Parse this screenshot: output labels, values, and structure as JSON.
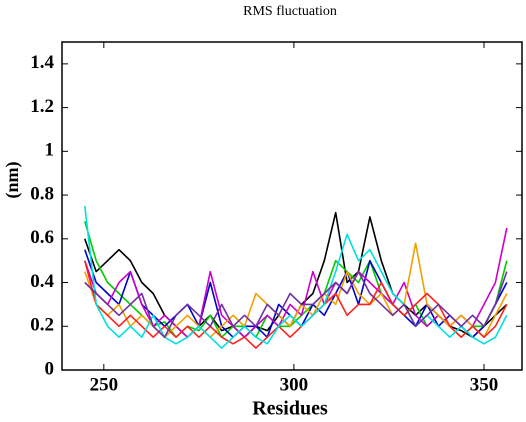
{
  "chart_data": {
    "type": "line",
    "title": "RMS fluctuation",
    "x_label": "Residues",
    "y_label": "(nm)",
    "x": [
      245,
      248,
      251,
      254,
      257,
      260,
      263,
      266,
      269,
      272,
      275,
      278,
      281,
      284,
      287,
      290,
      293,
      296,
      299,
      302,
      305,
      308,
      311,
      314,
      317,
      320,
      323,
      326,
      329,
      332,
      335,
      338,
      341,
      344,
      347,
      350,
      353,
      356
    ],
    "series": [
      {
        "color": "#000000",
        "values": [
          0.6,
          0.45,
          0.5,
          0.55,
          0.5,
          0.4,
          0.35,
          0.25,
          0.2,
          0.15,
          0.2,
          0.25,
          0.18,
          0.2,
          0.15,
          0.2,
          0.18,
          0.25,
          0.2,
          0.3,
          0.35,
          0.5,
          0.72,
          0.4,
          0.45,
          0.7,
          0.5,
          0.35,
          0.3,
          0.25,
          0.3,
          0.25,
          0.2,
          0.18,
          0.15,
          0.2,
          0.25,
          0.3
        ]
      },
      {
        "color": "#00cc00",
        "values": [
          0.68,
          0.5,
          0.4,
          0.35,
          0.3,
          0.25,
          0.2,
          0.22,
          0.15,
          0.2,
          0.18,
          0.25,
          0.15,
          0.2,
          0.2,
          0.15,
          0.25,
          0.2,
          0.2,
          0.25,
          0.3,
          0.35,
          0.5,
          0.45,
          0.4,
          0.5,
          0.35,
          0.3,
          0.25,
          0.3,
          0.2,
          0.25,
          0.2,
          0.15,
          0.2,
          0.2,
          0.3,
          0.5
        ]
      },
      {
        "color": "#0000cc",
        "values": [
          0.55,
          0.4,
          0.35,
          0.3,
          0.45,
          0.3,
          0.25,
          0.2,
          0.25,
          0.3,
          0.2,
          0.4,
          0.2,
          0.15,
          0.2,
          0.2,
          0.15,
          0.3,
          0.25,
          0.2,
          0.3,
          0.25,
          0.35,
          0.45,
          0.3,
          0.5,
          0.4,
          0.3,
          0.25,
          0.2,
          0.3,
          0.2,
          0.25,
          0.2,
          0.15,
          0.2,
          0.3,
          0.4
        ]
      },
      {
        "color": "#cc00cc",
        "values": [
          0.5,
          0.35,
          0.3,
          0.4,
          0.45,
          0.3,
          0.2,
          0.25,
          0.2,
          0.15,
          0.2,
          0.45,
          0.25,
          0.2,
          0.15,
          0.2,
          0.25,
          0.2,
          0.3,
          0.25,
          0.45,
          0.3,
          0.4,
          0.35,
          0.45,
          0.4,
          0.35,
          0.3,
          0.4,
          0.25,
          0.2,
          0.25,
          0.2,
          0.25,
          0.2,
          0.3,
          0.4,
          0.65
        ]
      },
      {
        "color": "#f0a000",
        "values": [
          0.45,
          0.3,
          0.25,
          0.3,
          0.2,
          0.25,
          0.2,
          0.15,
          0.2,
          0.25,
          0.2,
          0.15,
          0.2,
          0.25,
          0.2,
          0.35,
          0.3,
          0.25,
          0.2,
          0.3,
          0.25,
          0.35,
          0.3,
          0.45,
          0.35,
          0.3,
          0.35,
          0.25,
          0.3,
          0.58,
          0.3,
          0.25,
          0.2,
          0.25,
          0.2,
          0.15,
          0.25,
          0.35
        ]
      },
      {
        "color": "#ff2020",
        "values": [
          0.5,
          0.3,
          0.25,
          0.2,
          0.25,
          0.2,
          0.15,
          0.2,
          0.15,
          0.2,
          0.15,
          0.2,
          0.15,
          0.12,
          0.15,
          0.1,
          0.15,
          0.2,
          0.15,
          0.2,
          0.25,
          0.3,
          0.35,
          0.25,
          0.3,
          0.3,
          0.4,
          0.3,
          0.25,
          0.3,
          0.35,
          0.3,
          0.2,
          0.15,
          0.2,
          0.15,
          0.2,
          0.3
        ]
      },
      {
        "color": "#00e0e0",
        "values": [
          0.75,
          0.3,
          0.2,
          0.15,
          0.2,
          0.15,
          0.25,
          0.15,
          0.12,
          0.15,
          0.2,
          0.15,
          0.1,
          0.15,
          0.2,
          0.15,
          0.12,
          0.2,
          0.25,
          0.2,
          0.25,
          0.3,
          0.45,
          0.62,
          0.5,
          0.55,
          0.45,
          0.35,
          0.3,
          0.2,
          0.25,
          0.2,
          0.15,
          0.2,
          0.15,
          0.12,
          0.15,
          0.25
        ]
      },
      {
        "color": "#7030a0",
        "values": [
          0.4,
          0.35,
          0.3,
          0.25,
          0.3,
          0.35,
          0.2,
          0.15,
          0.25,
          0.3,
          0.25,
          0.2,
          0.3,
          0.2,
          0.25,
          0.2,
          0.3,
          0.25,
          0.35,
          0.3,
          0.3,
          0.35,
          0.4,
          0.35,
          0.45,
          0.35,
          0.3,
          0.25,
          0.3,
          0.2,
          0.25,
          0.3,
          0.25,
          0.2,
          0.25,
          0.2,
          0.3,
          0.45
        ]
      }
    ],
    "xlim": [
      239,
      360
    ],
    "ylim": [
      0,
      1.5
    ],
    "xticks": [
      250,
      300,
      350
    ],
    "yticks": [
      0,
      0.2,
      0.4,
      0.6,
      0.8,
      1,
      1.2,
      1.4
    ]
  }
}
